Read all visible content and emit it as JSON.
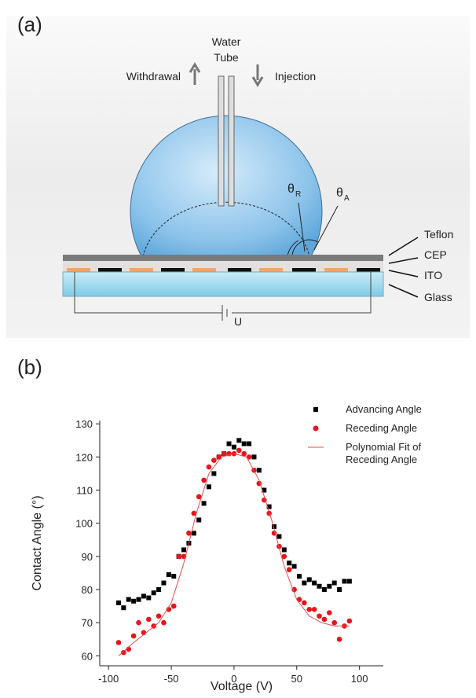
{
  "panel_a": {
    "label": "(a)",
    "water_tube": [
      "Water",
      "Tube"
    ],
    "withdrawal": "Withdrawal",
    "injection": "Injection",
    "theta_r": {
      "symbol": "θ",
      "subscript": "R"
    },
    "theta_a": {
      "symbol": "θ",
      "subscript": "A"
    },
    "layers": [
      "Teflon",
      "CEP",
      "ITO",
      "Glass"
    ],
    "voltage": "U"
  },
  "panel_b": {
    "label": "(b)"
  },
  "chart_data": {
    "type": "scatter",
    "xlabel": "Voltage (V)",
    "ylabel": "Contact Angle (°)",
    "xlim": [
      -107,
      119
    ],
    "ylim": [
      57,
      131
    ],
    "xticks": [
      -100,
      -50,
      0,
      50,
      100
    ],
    "yticks": [
      60,
      70,
      80,
      90,
      100,
      110,
      120,
      130
    ],
    "series": [
      {
        "name": "Advancing Angle",
        "color": "#000000",
        "marker": "square",
        "x": [
          -92,
          -88,
          -84,
          -80,
          -76,
          -72,
          -68,
          -64,
          -60,
          -56,
          -52,
          -48,
          -44,
          -40,
          -36,
          -32,
          -28,
          -24,
          -20,
          -16,
          -12,
          -8,
          -4,
          0,
          4,
          8,
          12,
          16,
          20,
          24,
          28,
          32,
          36,
          40,
          44,
          48,
          52,
          56,
          60,
          64,
          68,
          72,
          76,
          80,
          84,
          88,
          92
        ],
        "values": [
          76,
          74.5,
          77,
          76.5,
          77,
          78,
          77.5,
          79,
          80,
          82,
          84.5,
          84,
          90,
          92,
          94,
          97,
          101,
          106,
          111,
          115,
          120,
          121,
          124,
          123,
          125,
          124,
          124,
          120,
          116,
          110,
          105,
          99,
          96,
          92,
          88,
          87,
          84,
          82,
          83,
          82,
          81,
          80,
          81,
          82,
          80,
          82.5,
          82.5
        ]
      },
      {
        "name": "Receding Angle",
        "color": "#e8141c",
        "marker": "circle",
        "x": [
          -92,
          -88,
          -84,
          -80,
          -76,
          -72,
          -68,
          -64,
          -60,
          -56,
          -52,
          -48,
          -44,
          -40,
          -36,
          -32,
          -28,
          -24,
          -20,
          -16,
          -12,
          -8,
          -4,
          0,
          4,
          8,
          12,
          16,
          20,
          24,
          28,
          32,
          36,
          40,
          44,
          48,
          52,
          56,
          60,
          64,
          68,
          72,
          76,
          80,
          84,
          88,
          92
        ],
        "values": [
          64,
          61,
          62,
          66,
          70,
          67,
          71,
          69,
          72,
          70,
          74,
          75,
          90,
          90,
          97,
          103,
          108,
          113,
          117,
          119,
          120,
          121,
          121,
          121,
          122,
          121,
          120,
          116,
          112,
          107,
          103,
          97,
          93,
          90,
          86,
          80,
          77,
          76,
          74,
          74,
          72,
          71,
          73,
          70,
          65,
          69,
          70.5
        ]
      },
      {
        "name": "Polynomial Fit of Receding Angle",
        "color": "#f04848",
        "marker": "line",
        "x": [
          -92,
          -80,
          -70,
          -60,
          -50,
          -40,
          -30,
          -20,
          -10,
          0,
          10,
          20,
          30,
          40,
          50,
          60,
          70,
          80,
          92
        ],
        "values": [
          60,
          64,
          67,
          70,
          76,
          88,
          103,
          115,
          120,
          121,
          120,
          113,
          101,
          87,
          77,
          72,
          70,
          69,
          69
        ]
      }
    ]
  }
}
